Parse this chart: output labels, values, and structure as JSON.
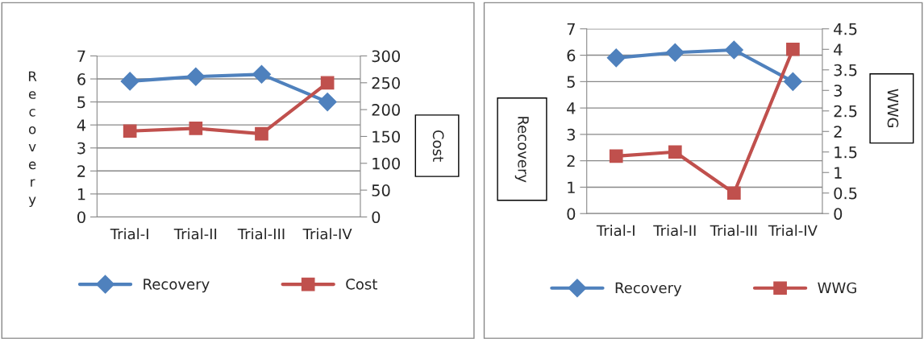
{
  "chart_data": [
    {
      "type": "line",
      "categories": [
        "Trial-I",
        "Trial-II",
        "Trial-III",
        "Trial-IV"
      ],
      "ylabel": "Recovery",
      "y2label": "Cost",
      "ylim": [
        0,
        7
      ],
      "yticks": [
        0,
        1,
        2,
        3,
        4,
        5,
        6,
        7
      ],
      "y2lim": [
        0,
        300
      ],
      "y2ticks": [
        0,
        50,
        100,
        150,
        200,
        250,
        300
      ],
      "grid": "y",
      "legend": "bottom",
      "series": [
        {
          "name": "Recovery",
          "color": "#4f81bd",
          "marker": "diamond",
          "values": [
            5.9,
            6.1,
            6.2,
            5.0
          ]
        },
        {
          "name": "Cost",
          "color": "#c0504d",
          "marker": "square",
          "axis": "y2",
          "values": [
            160,
            165,
            155,
            250
          ]
        }
      ]
    },
    {
      "type": "line",
      "categories": [
        "Trial-I",
        "Trial-II",
        "Trial-III",
        "Trial-IV"
      ],
      "ylabel": "Recovery",
      "y2label": "WWG",
      "ylim": [
        0,
        7
      ],
      "yticks": [
        0,
        1,
        2,
        3,
        4,
        5,
        6,
        7
      ],
      "y2lim": [
        0,
        4.5
      ],
      "y2ticks": [
        0,
        0.5,
        1,
        1.5,
        2,
        2.5,
        3,
        3.5,
        4,
        4.5
      ],
      "grid": "y",
      "legend": "bottom",
      "series": [
        {
          "name": "Recovery",
          "color": "#4f81bd",
          "marker": "diamond",
          "values": [
            5.9,
            6.1,
            6.2,
            5.0
          ]
        },
        {
          "name": "WWG",
          "color": "#c0504d",
          "marker": "square",
          "axis": "y2",
          "values": [
            1.4,
            1.5,
            0.5,
            4.0
          ]
        }
      ]
    }
  ]
}
